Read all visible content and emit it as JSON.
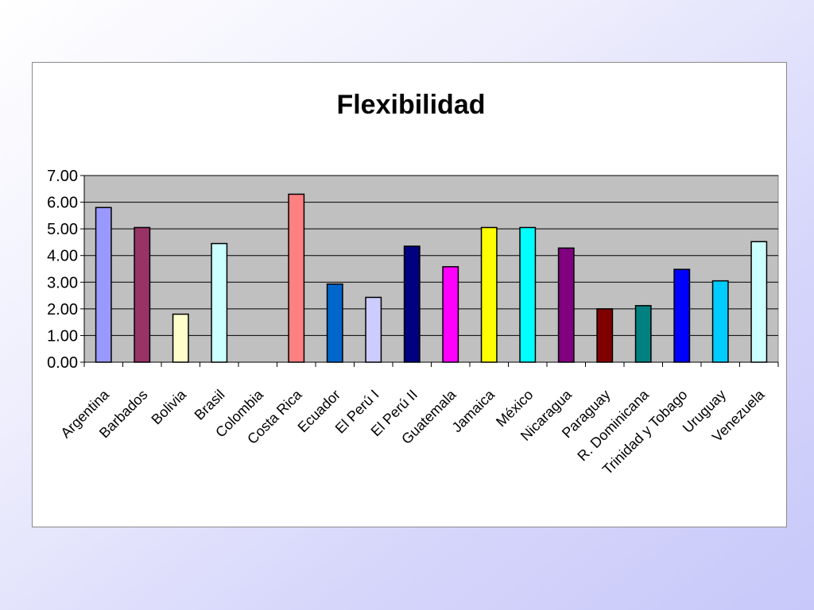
{
  "chart_data": {
    "type": "bar",
    "title": "Flexibilidad",
    "xlabel": "",
    "ylabel": "",
    "ylim": [
      0,
      7
    ],
    "yticks": [
      "0.00",
      "1.00",
      "2.00",
      "3.00",
      "4.00",
      "5.00",
      "6.00",
      "7.00"
    ],
    "grid": true,
    "legend": "none",
    "categories": [
      "Argentina",
      "Barbados",
      "Bolivia",
      "Brasil",
      "Colombia",
      "Costa Rica",
      "Ecuador",
      "El Perú I",
      "El Perú II",
      "Guatemala",
      "Jamaica",
      "México",
      "Nicaragua",
      "Paraguay",
      "R. Dominicana",
      "Trinidad y Tobago",
      "Uruguay",
      "Venezuela"
    ],
    "values": [
      5.8,
      5.05,
      1.8,
      4.45,
      0,
      6.3,
      2.93,
      2.43,
      4.35,
      3.58,
      5.05,
      5.05,
      4.28,
      2.0,
      2.12,
      3.48,
      3.05,
      4.52
    ],
    "colors": [
      "#9999ff",
      "#993366",
      "#ffffcc",
      "#ccffff",
      "#660066",
      "#ff8080",
      "#0066cc",
      "#ccccff",
      "#000080",
      "#ff00ff",
      "#ffff00",
      "#00ffff",
      "#800080",
      "#800000",
      "#008080",
      "#0000ff",
      "#00ccff",
      "#ccffff"
    ],
    "plot_background": "#c0c0c0"
  }
}
